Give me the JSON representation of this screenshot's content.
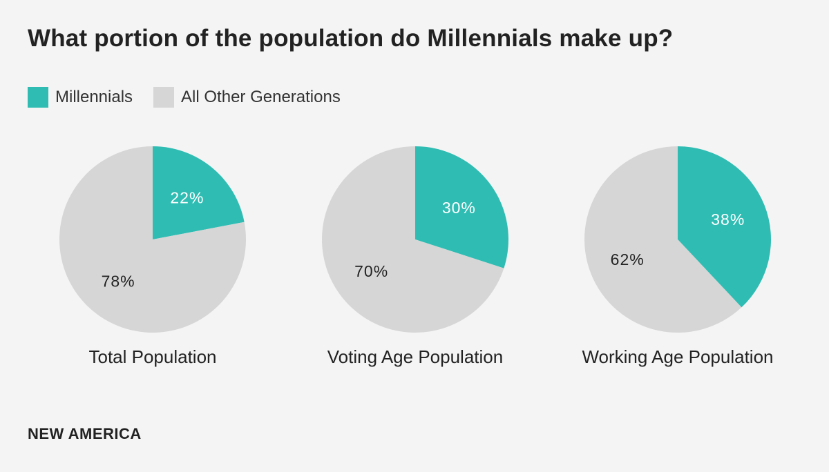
{
  "title": "What portion of the population do Millennials make up?",
  "footer": "NEW AMERICA",
  "colors": {
    "millennials": "#2fbdb3",
    "other": "#d6d6d6",
    "background": "#f4f4f4"
  },
  "legend": [
    {
      "label": "Millennials",
      "color": "#2fbdb3"
    },
    {
      "label": "All Other Generations",
      "color": "#d6d6d6"
    }
  ],
  "chart_data": [
    {
      "type": "pie",
      "title": "Total Population",
      "slices": [
        {
          "name": "Millennials",
          "value": 22,
          "label": "22%"
        },
        {
          "name": "All Other Generations",
          "value": 78,
          "label": "78%"
        }
      ]
    },
    {
      "type": "pie",
      "title": "Voting Age Population",
      "slices": [
        {
          "name": "Millennials",
          "value": 30,
          "label": "30%"
        },
        {
          "name": "All Other Generations",
          "value": 70,
          "label": "70%"
        }
      ]
    },
    {
      "type": "pie",
      "title": "Working Age Population",
      "slices": [
        {
          "name": "Millennials",
          "value": 38,
          "label": "38%"
        },
        {
          "name": "All Other Generations",
          "value": 62,
          "label": "62%"
        }
      ]
    }
  ]
}
